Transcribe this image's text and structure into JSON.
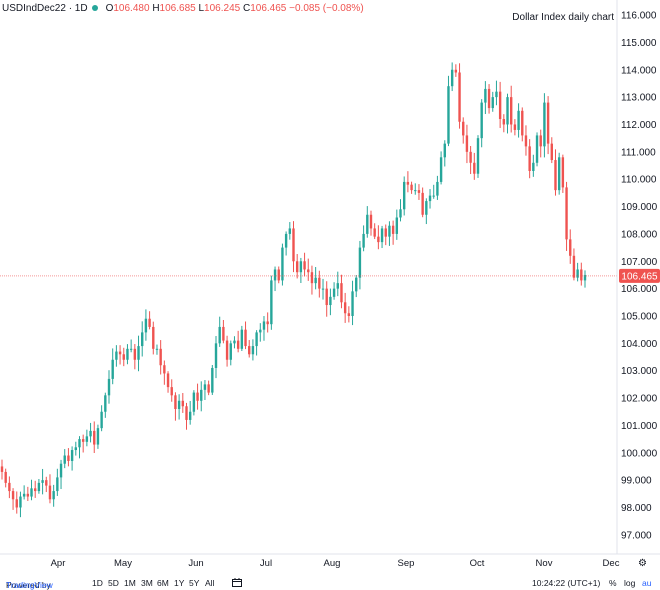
{
  "legend": {
    "symbol": "USDIndDec22 · 1D",
    "o_label": "O",
    "o": "106.480",
    "h_label": "H",
    "h": "106.685",
    "l_label": "L",
    "l": "106.245",
    "c_label": "C",
    "c": "106.465",
    "change": "−0.085 (−0.08%)"
  },
  "chart_data": {
    "type": "candlestick",
    "title": "Dollar Index daily chart",
    "y_ticks": [
      "97.000",
      "98.000",
      "99.000",
      "100.000",
      "101.000",
      "102.000",
      "103.000",
      "104.000",
      "105.000",
      "106.000",
      "107.000",
      "108.000",
      "109.000",
      "110.000",
      "111.000",
      "112.000",
      "113.000",
      "114.000",
      "115.000",
      "116.000"
    ],
    "ylim": [
      96.3,
      116.55
    ],
    "x_ticks": [
      "Apr",
      "May",
      "Jun",
      "Jul",
      "Aug",
      "Sep",
      "Oct",
      "Nov",
      "Dec"
    ],
    "last_price_label": "106.465",
    "last_price": 106.465,
    "grid": false,
    "colors": {
      "up": "#26a69a",
      "down": "#ef5350",
      "last_line": "#ef5350"
    },
    "closes": [
      99.3,
      98.9,
      98.6,
      98.3,
      98.0,
      98.4,
      98.5,
      98.4,
      98.7,
      98.6,
      98.9,
      99.0,
      98.8,
      98.3,
      98.6,
      99.1,
      99.6,
      99.9,
      99.7,
      100.1,
      100.2,
      100.5,
      100.4,
      100.6,
      100.8,
      100.3,
      100.9,
      101.5,
      102.1,
      102.7,
      103.4,
      103.7,
      103.6,
      103.4,
      103.8,
      103.8,
      103.4,
      103.9,
      104.4,
      104.9,
      104.6,
      103.8,
      103.8,
      103.2,
      102.9,
      102.4,
      102.1,
      101.6,
      101.9,
      101.7,
      101.2,
      101.5,
      102.2,
      101.9,
      102.3,
      102.5,
      102.2,
      103.1,
      104.0,
      104.6,
      104.1,
      103.4,
      104.0,
      104.1,
      103.8,
      104.5,
      103.9,
      103.6,
      103.9,
      104.4,
      104.5,
      104.8,
      104.7,
      106.3,
      106.7,
      106.3,
      107.5,
      108.0,
      108.2,
      107.0,
      106.6,
      107.0,
      106.7,
      106.6,
      106.2,
      106.4,
      106.0,
      106.0,
      105.4,
      105.7,
      106.0,
      106.2,
      105.5,
      105.1,
      105.0,
      105.9,
      106.4,
      107.5,
      108.0,
      108.7,
      108.2,
      107.9,
      107.7,
      108.2,
      107.9,
      108.3,
      108.0,
      108.6,
      108.9,
      109.9,
      109.8,
      109.6,
      109.6,
      109.5,
      108.7,
      109.2,
      109.4,
      109.4,
      109.9,
      110.8,
      111.3,
      113.4,
      114.0,
      113.9,
      112.1,
      111.6,
      111.0,
      110.6,
      110.2,
      111.5,
      112.8,
      113.3,
      112.6,
      113.0,
      113.2,
      112.2,
      112.0,
      113.0,
      112.0,
      111.8,
      112.5,
      111.6,
      111.2,
      110.3,
      110.6,
      111.6,
      111.2,
      112.8,
      111.3,
      110.7,
      109.6,
      110.8,
      109.7,
      107.8,
      107.2,
      106.4,
      106.7,
      106.3,
      106.5
    ]
  },
  "bottom_bar": {
    "brand_prefix": "Powered by",
    "brand": "TradingView",
    "ranges": [
      "1D",
      "5D",
      "1M",
      "3M",
      "6M",
      "1Y",
      "5Y",
      "All"
    ],
    "compare_icon": "calendar-range-icon",
    "time": "10:24:22 (UTC+1)",
    "percent": "%",
    "log": "log",
    "auto": "au",
    "settings_icon": "gear-icon"
  }
}
